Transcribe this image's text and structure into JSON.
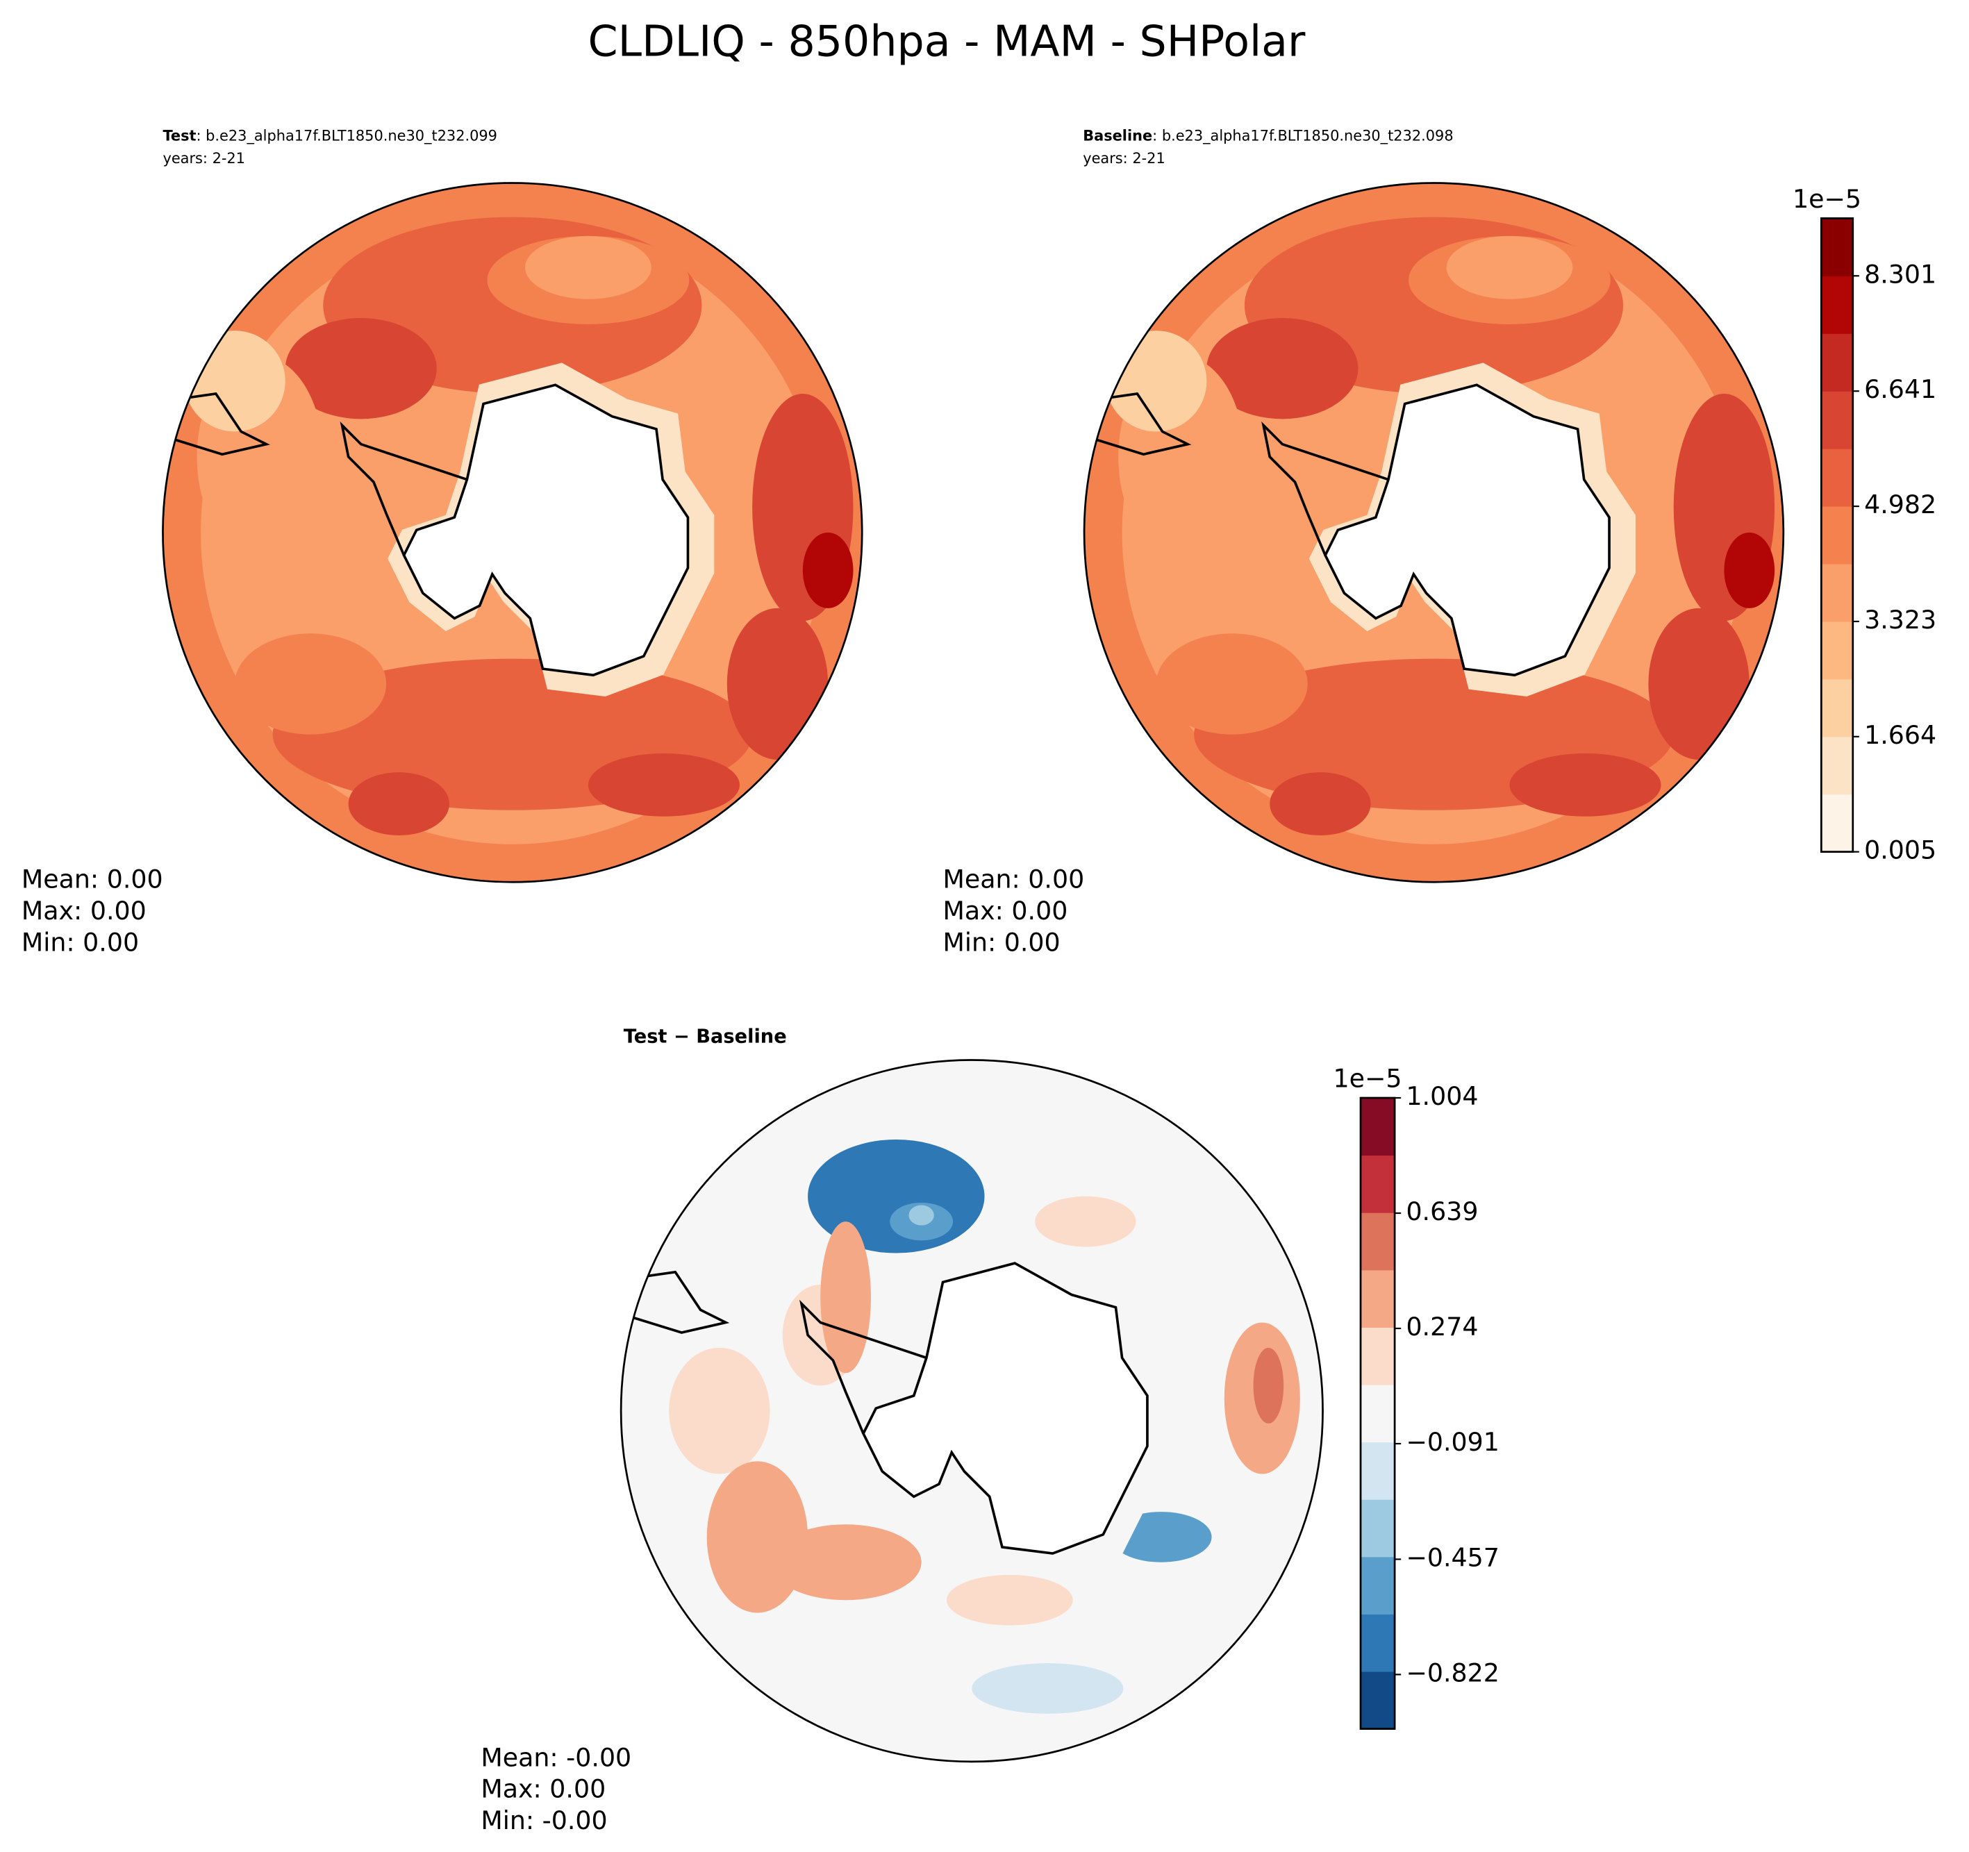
{
  "title": "CLDLIQ - 850hpa - MAM - SHPolar",
  "panels": [
    {
      "label": "Test",
      "name": ": b.e23_alpha17f.BLT1850.ne30_t232.099",
      "years": "years: 2-21",
      "stats": [
        "Mean:  0.00",
        "Max:  0.00",
        "Min:  0.00"
      ]
    },
    {
      "label": "Baseline",
      "name": ": b.e23_alpha17f.BLT1850.ne30_t232.098",
      "years": "years: 2-21",
      "stats": [
        "Mean:  0.00",
        "Max:  0.00",
        "Min:  0.00"
      ]
    },
    {
      "label": "Test − Baseline",
      "stats": [
        "Mean: -0.00",
        "Max:  0.00",
        "Min: -0.00"
      ]
    }
  ],
  "colorbars": [
    {
      "offset_label": "1e−5",
      "lim": [
        0.005,
        9.13
      ],
      "ticks": [
        0.005,
        1.664,
        3.323,
        4.982,
        6.641,
        8.301
      ],
      "colors": [
        "#fdf3e6",
        "#fde3c5",
        "#fdd0a2",
        "#fdb882",
        "#fa9e6a",
        "#f4824f",
        "#e8623f",
        "#d84532",
        "#c52a22",
        "#b20606",
        "#8a0000"
      ]
    },
    {
      "offset_label": "1e−5",
      "lim": [
        -0.994,
        1.004
      ],
      "ticks": [
        {
          "value": 1.004,
          "label": "1.004"
        },
        {
          "value": 0.639,
          "label": "0.639"
        },
        {
          "value": 0.274,
          "label": "0.274"
        },
        {
          "value": -0.091,
          "label": "−0.091"
        },
        {
          "value": -0.457,
          "label": "−0.457"
        },
        {
          "value": -0.822,
          "label": "−0.822"
        }
      ],
      "colors": [
        "#124a87",
        "#2d78b5",
        "#5a9fcb",
        "#9ecae1",
        "#d2e5f0",
        "#f6f6f6",
        "#fbdbc9",
        "#f4a886",
        "#de735c",
        "#c3303a",
        "#860c25"
      ]
    }
  ]
}
